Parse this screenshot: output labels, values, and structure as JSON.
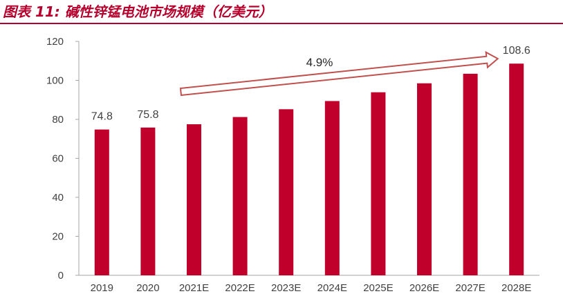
{
  "figure": {
    "title": "图表 11: 碱性锌锰电池市场规模（亿美元）"
  },
  "colors": {
    "bar": "#c0002b",
    "title": "#b5002d",
    "arrow": "#c0504d",
    "text": "#404040"
  },
  "chart_data": {
    "type": "bar",
    "title": "碱性锌锰电池市场规模（亿美元）",
    "categories": [
      "2019",
      "2020",
      "2021E",
      "2022E",
      "2023E",
      "2024E",
      "2025E",
      "2026E",
      "2027E",
      "2028E"
    ],
    "values": [
      74.8,
      75.8,
      77.5,
      81.2,
      85.2,
      89.4,
      93.9,
      98.5,
      103.4,
      108.6
    ],
    "data_labels": [
      {
        "index": 0,
        "text": "74.8"
      },
      {
        "index": 1,
        "text": "75.8"
      },
      {
        "index": 9,
        "text": "108.6"
      }
    ],
    "annotation": {
      "text": "4.9%",
      "from_index": 2,
      "to_index": 9
    },
    "ylim": [
      0,
      120
    ],
    "yticks": [
      0,
      20,
      40,
      60,
      80,
      100,
      120
    ],
    "xlabel": "",
    "ylabel": "",
    "grid": false,
    "legend": "none"
  }
}
